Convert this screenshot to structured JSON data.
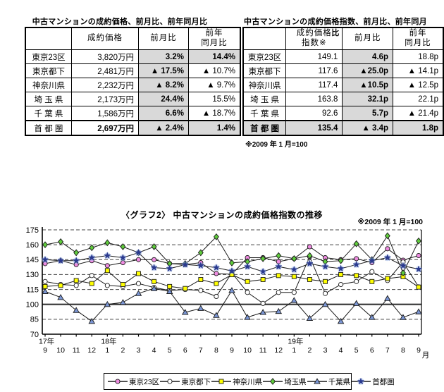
{
  "price_table": {
    "title": "中古マンションの成約価格、前月比、前年同月比",
    "headers": [
      "",
      "成約価格",
      "前月比",
      "前年\n同月比"
    ],
    "rows": [
      {
        "cells": [
          "東京23区",
          "3,820万円",
          "3.2%",
          "14.4%"
        ],
        "bold": [
          false,
          false,
          true,
          true
        ],
        "shade": [
          false,
          false,
          true,
          true
        ],
        "last": false
      },
      {
        "cells": [
          "東京都下",
          "2,481万円",
          "▲ 17.5%",
          "▲ 10.7%"
        ],
        "bold": [
          false,
          false,
          true,
          false
        ],
        "shade": [
          false,
          false,
          true,
          false
        ],
        "last": false
      },
      {
        "cells": [
          "神奈川県",
          "2,232万円",
          "▲ 8.2%",
          "▲ 9.7%"
        ],
        "bold": [
          false,
          false,
          true,
          false
        ],
        "shade": [
          false,
          false,
          true,
          false
        ],
        "last": false
      },
      {
        "cells": [
          "埼 玉 県",
          "2,173万円",
          "24.4%",
          "15.5%"
        ],
        "bold": [
          false,
          false,
          true,
          false
        ],
        "shade": [
          false,
          false,
          true,
          false
        ],
        "last": false
      },
      {
        "cells": [
          "千 葉 県",
          "1,586万円",
          "6.6%",
          "▲ 18.7%"
        ],
        "bold": [
          false,
          false,
          true,
          false
        ],
        "shade": [
          false,
          false,
          true,
          false
        ],
        "last": false
      },
      {
        "cells": [
          "首 都 圏",
          "2,697万円",
          "▲ 2.4%",
          "1.4%"
        ],
        "bold": [
          false,
          true,
          true,
          true
        ],
        "shade": [
          false,
          false,
          true,
          true
        ],
        "last": true
      }
    ]
  },
  "index_table": {
    "title": "中古マンションの成約価格指数、前月比、前年同月比",
    "headers": [
      "",
      "成約価格\n指数※",
      "前月比",
      "前年\n同月比"
    ],
    "footnote": "※2009 年 1 月=100",
    "rows": [
      {
        "cells": [
          "東京23区",
          "149.1",
          "4.6p",
          "18.8p"
        ],
        "bold": [
          false,
          false,
          true,
          false
        ],
        "shade": [
          false,
          false,
          true,
          false
        ],
        "last": false
      },
      {
        "cells": [
          "東京都下",
          "117.6",
          "▲25.0p",
          "▲ 14.1p"
        ],
        "bold": [
          false,
          false,
          true,
          false
        ],
        "shade": [
          false,
          false,
          true,
          false
        ],
        "last": false
      },
      {
        "cells": [
          "神奈川県",
          "117.4",
          "▲10.5p",
          "▲ 12.5p"
        ],
        "bold": [
          false,
          false,
          true,
          false
        ],
        "shade": [
          false,
          false,
          true,
          false
        ],
        "last": false
      },
      {
        "cells": [
          "埼 玉 県",
          "163.8",
          "32.1p",
          "22.1p"
        ],
        "bold": [
          false,
          false,
          true,
          false
        ],
        "shade": [
          false,
          false,
          true,
          false
        ],
        "last": false
      },
      {
        "cells": [
          "千 葉 県",
          "92.6",
          "5.7p",
          "▲ 21.4p"
        ],
        "bold": [
          false,
          false,
          true,
          false
        ],
        "shade": [
          false,
          false,
          true,
          false
        ],
        "last": false
      },
      {
        "cells": [
          "首 都 圏",
          "135.4",
          "▲ 3.4p",
          "1.8p"
        ],
        "bold": [
          true,
          true,
          true,
          true
        ],
        "shade": [
          true,
          true,
          true,
          true
        ],
        "last": true
      }
    ]
  },
  "chart_data": {
    "type": "line",
    "title": "〈グラフ2〉 中古マンションの成約価格指数の推移",
    "note": "※2009 年 1 月=100",
    "x_unit": "月",
    "x_months": [
      "9",
      "10",
      "11",
      "12",
      "1",
      "2",
      "3",
      "4",
      "5",
      "6",
      "7",
      "8",
      "9",
      "10",
      "11",
      "12",
      "1",
      "2",
      "3",
      "4",
      "5",
      "6",
      "7",
      "8",
      "9"
    ],
    "x_years": [
      {
        "label": "17年",
        "index": 0
      },
      {
        "label": "18年",
        "index": 4
      },
      {
        "label": "19年",
        "index": 16
      }
    ],
    "ylim": [
      70,
      175
    ],
    "yticks": [
      70,
      85,
      100,
      115,
      130,
      145,
      160,
      175
    ],
    "grid": "dashed, solid emphasis line at 100",
    "legend_position": "bottom",
    "series": [
      {
        "name": "東京23区",
        "marker": "circle",
        "color": "#ee8ce0",
        "values": [
          141,
          144,
          140,
          144,
          139,
          142,
          145,
          145,
          141,
          140,
          142,
          131,
          130.3,
          147,
          147,
          143,
          146,
          158,
          147,
          145,
          146,
          142,
          156,
          144.5,
          149.1
        ]
      },
      {
        "name": "東京都下",
        "marker": "circle-open",
        "color": "#ffffff",
        "values": [
          123,
          120,
          119,
          129,
          119,
          118,
          121,
          117,
          114,
          115,
          114,
          108,
          131.7,
          112,
          101,
          112,
          112,
          148,
          111,
          120,
          123,
          133,
          124,
          142.6,
          117.6
        ]
      },
      {
        "name": "神奈川県",
        "marker": "square",
        "color": "#ffff00",
        "values": [
          118,
          119,
          124,
          121,
          134,
          120,
          131,
          123,
          118,
          116,
          125,
          121,
          129.9,
          123,
          125,
          129,
          128,
          125,
          123,
          130,
          129,
          123,
          126,
          127.9,
          117.4
        ]
      },
      {
        "name": "埼玉県",
        "marker": "diamond",
        "color": "#5fcb3c",
        "values": [
          160,
          163,
          152,
          157,
          162,
          158,
          152,
          158,
          141,
          141,
          152,
          168,
          141.7,
          143,
          146,
          149,
          146,
          149,
          143,
          144,
          161,
          145,
          169,
          131.7,
          163.8
        ]
      },
      {
        "name": "千葉県",
        "marker": "triangle",
        "color": "#7b96d4",
        "values": [
          113,
          107,
          94,
          83,
          100,
          102,
          111,
          116,
          113,
          92,
          96,
          89,
          114,
          87,
          92,
          93,
          104,
          86,
          100,
          83,
          101,
          87,
          106,
          86.9,
          92.6
        ]
      },
      {
        "name": "首都圏",
        "marker": "star",
        "color": "#2b3a8f",
        "values": [
          145,
          144,
          144,
          147,
          149,
          147,
          152,
          137,
          136,
          140,
          139,
          137,
          133.6,
          138,
          133,
          138,
          135,
          141,
          138,
          136,
          140,
          144,
          147,
          138.8,
          135.4
        ]
      }
    ]
  }
}
